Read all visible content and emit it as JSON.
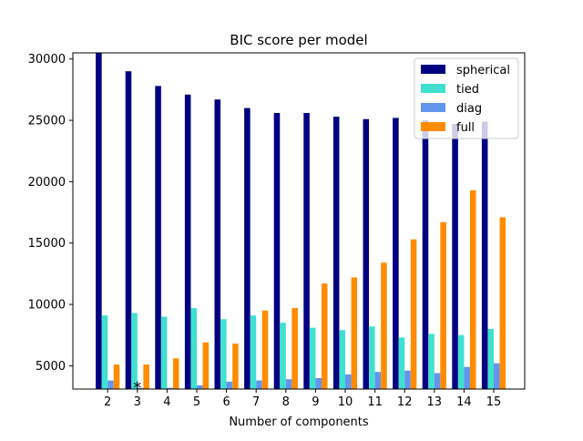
{
  "chart_data": {
    "type": "bar",
    "title": "BIC score per model",
    "xlabel": "Number of components",
    "ylabel": "",
    "categories": [
      "2",
      "3",
      "4",
      "5",
      "6",
      "7",
      "8",
      "9",
      "10",
      "11",
      "12",
      "13",
      "14",
      "15"
    ],
    "ylim": [
      3100,
      30500
    ],
    "yticks": [
      5000,
      10000,
      15000,
      20000,
      25000,
      30000
    ],
    "ytick_labels": [
      "5000",
      "10000",
      "15000",
      "20000",
      "25000",
      "30000"
    ],
    "grid": false,
    "legend_position": "top-right",
    "series": [
      {
        "name": "spherical",
        "color": "#000080",
        "values": [
          30600,
          29000,
          27800,
          27100,
          26700,
          26000,
          25600,
          25600,
          25300,
          25100,
          25200,
          25000,
          24700,
          24900
        ]
      },
      {
        "name": "tied",
        "color": "#40E0D0",
        "values": [
          9100,
          9300,
          9000,
          9700,
          8800,
          9100,
          8500,
          8100,
          7900,
          8200,
          7300,
          7600,
          7500,
          8000
        ]
      },
      {
        "name": "diag",
        "color": "#6495ED",
        "values": [
          3800,
          3200,
          3200,
          3400,
          3700,
          3800,
          3900,
          4000,
          4300,
          4500,
          4600,
          4400,
          4900,
          5200
        ]
      },
      {
        "name": "full",
        "color": "#FF8C00",
        "values": [
          5100,
          5100,
          5600,
          6900,
          6800,
          9500,
          9700,
          11700,
          12200,
          13400,
          15300,
          16700,
          19300,
          17100
        ]
      }
    ],
    "annotations": [
      {
        "text": "*",
        "category": "3",
        "y": 3300
      }
    ]
  }
}
